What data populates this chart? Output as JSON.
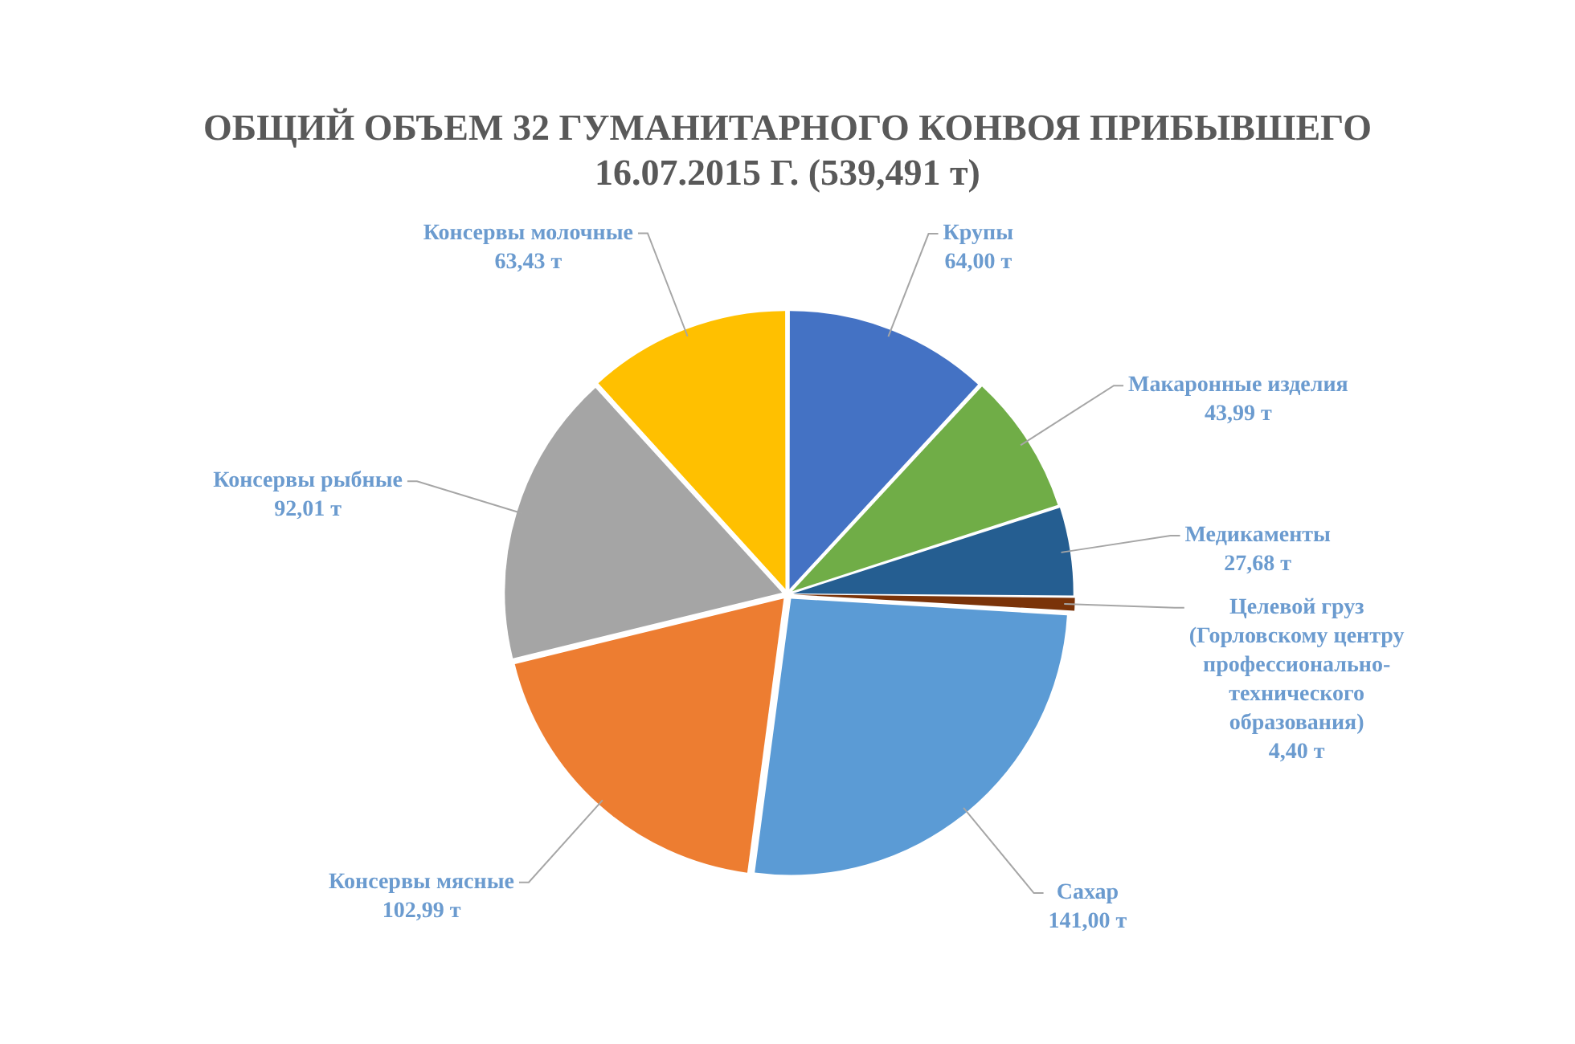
{
  "chart_data": {
    "type": "pie",
    "title": "ОБЩИЙ ОБЪЕМ 32 ГУМАНИТАРНОГО КОНВОЯ ПРИБЫВШЕГО 16.07.2015 Г. (539,491 т)",
    "categories": [
      "Крупы",
      "Макаронные изделия",
      "Медикаменты",
      "Целевой груз (Горловскому центру профессионально-технического образования)",
      "Сахар",
      "Консервы мясные",
      "Консервы рыбные",
      "Консервы молочные"
    ],
    "values": [
      64.0,
      43.99,
      27.68,
      4.4,
      141.0,
      102.99,
      92.01,
      63.43
    ],
    "value_labels": [
      "64,00 т",
      "43,99 т",
      "27,68 т",
      "4,40 т",
      "141,00 т",
      "102,99 т",
      "92,01 т",
      "63,43 т"
    ],
    "colors": [
      "#4472c4",
      "#70ad47",
      "#255e91",
      "#7a3309",
      "#5b9bd5",
      "#ed7d31",
      "#a5a5a5",
      "#ffc000"
    ]
  }
}
